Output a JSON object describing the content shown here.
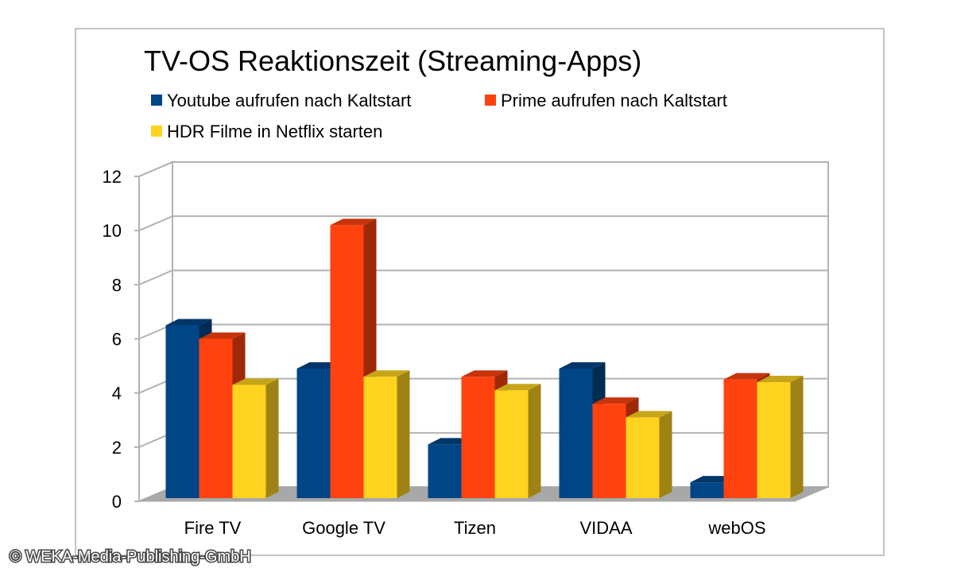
{
  "chart_data": {
    "type": "bar",
    "title": "TV-OS Reaktionszeit (Streaming-Apps)",
    "categories": [
      "Fire TV",
      "Google TV",
      "Tizen",
      "VIDAA",
      "webOS"
    ],
    "series": [
      {
        "name": "Youtube aufrufen nach Kaltstart",
        "values": [
          6.5,
          4.9,
          2.1,
          4.9,
          0.7
        ],
        "color": "#004586"
      },
      {
        "name": "Prime aufrufen nach Kaltstart",
        "values": [
          6.0,
          10.2,
          4.6,
          3.6,
          4.5
        ],
        "color": "#ff420e"
      },
      {
        "name": "HDR Filme in Netflix starten",
        "values": [
          4.3,
          4.6,
          4.1,
          3.1,
          4.4
        ],
        "color": "#ffd320"
      }
    ],
    "ylim": [
      0,
      12
    ],
    "yticks": [
      "0",
      "2",
      "4",
      "6",
      "8",
      "10",
      "12"
    ],
    "xlabel": "",
    "ylabel": "",
    "grid": true,
    "legend": "top",
    "style": "3d-clustered-bar"
  },
  "watermark": "© WEKA-Media-Publishing-GmbH"
}
